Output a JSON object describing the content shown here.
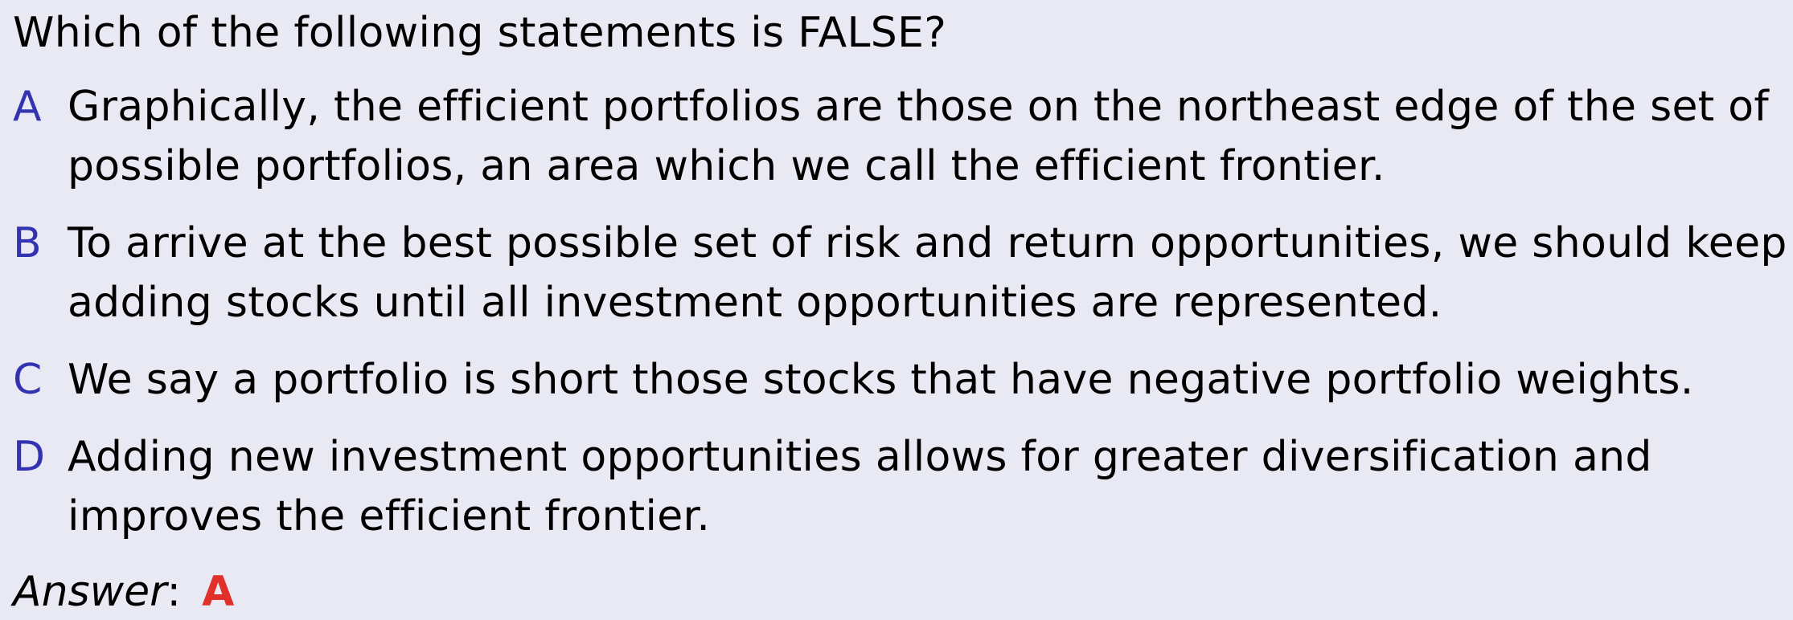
{
  "question": "Which of the following statements is FALSE?",
  "options": [
    {
      "letter": "A",
      "text": "Graphically, the efficient portfolios are those on the northeast edge of the set of possible portfolios, an area which we call the efficient frontier."
    },
    {
      "letter": "B",
      "text": "To arrive at the best possible set of risk and return opportunities, we should keep adding stocks until all investment opportunities are represented."
    },
    {
      "letter": "C",
      "text": "We say a portfolio is short those stocks that have negative portfolio weights."
    },
    {
      "letter": "D",
      "text": "Adding new investment opportunities allows for greater diversification and improves the efficient frontier."
    }
  ],
  "answer": {
    "label": "Answer",
    "colon": ":",
    "value": "A"
  },
  "colors": {
    "background": "#e9e9f4",
    "option_letter": "#3333b2",
    "answer_value": "#e0302a"
  }
}
